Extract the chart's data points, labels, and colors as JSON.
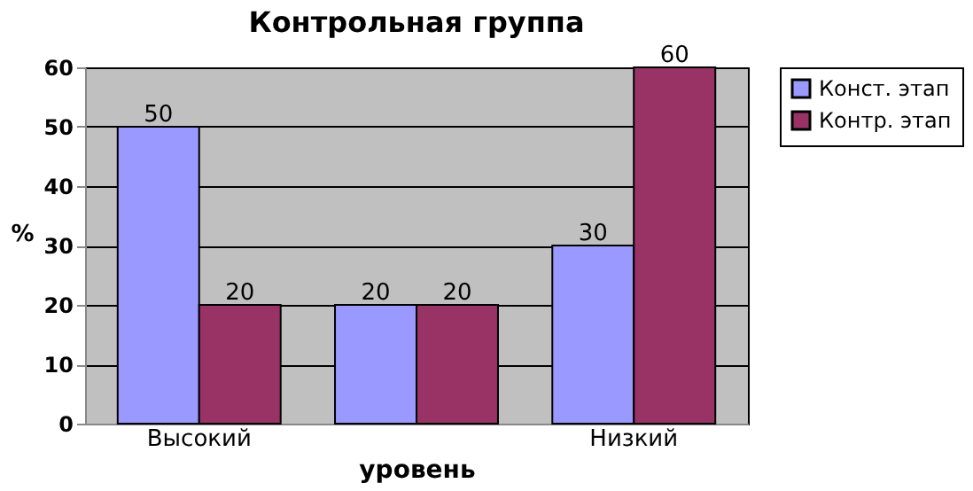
{
  "chart_data": {
    "type": "bar",
    "title": "Контрольная группа",
    "xlabel": "уровень",
    "ylabel": "%",
    "categories": [
      "Высокий",
      null,
      "Низкий"
    ],
    "series": [
      {
        "name": "Конст. этап",
        "color": "#9999ff",
        "values": [
          50,
          20,
          30
        ]
      },
      {
        "name": "Контр. этап",
        "color": "#993366",
        "values": [
          20,
          20,
          60
        ]
      }
    ],
    "ylim": [
      0,
      60
    ],
    "yticks": [
      0,
      10,
      20,
      30,
      40,
      50,
      60
    ],
    "grid": "y",
    "legend": "right",
    "data_labels": true
  }
}
